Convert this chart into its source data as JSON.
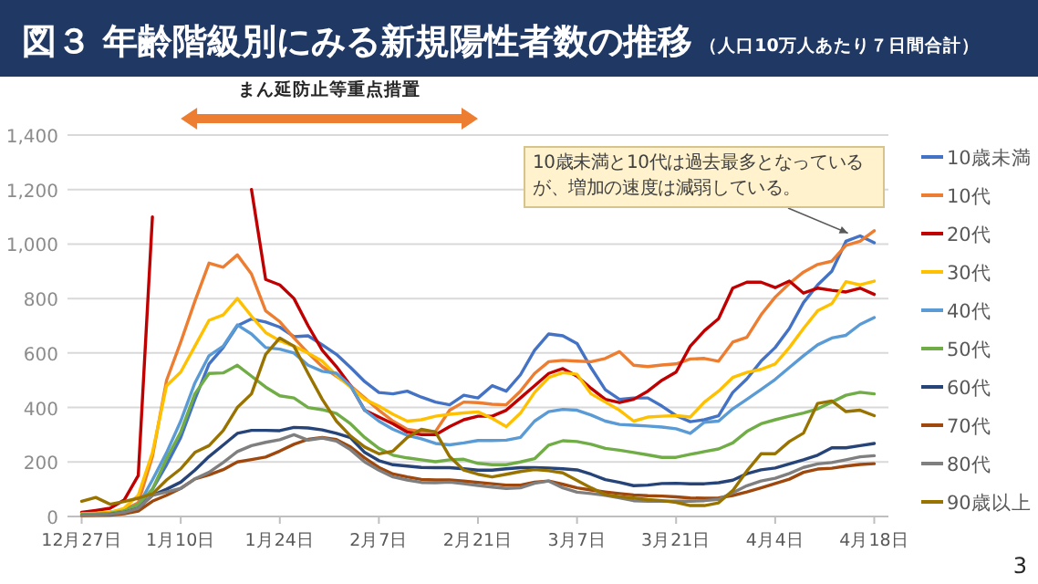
{
  "chart_data": {
    "type": "line",
    "title": "図３ 年齢階級別にみる新規陽性者数の推移",
    "subtitle": "（人口10万人あたり７日間合計）",
    "categories": [
      "12月27日",
      null,
      null,
      null,
      null,
      null,
      null,
      "1月10日",
      null,
      null,
      null,
      null,
      null,
      null,
      "1月24日",
      null,
      null,
      null,
      null,
      null,
      null,
      "2月7日",
      null,
      null,
      null,
      null,
      null,
      null,
      "2月21日",
      null,
      null,
      null,
      null,
      null,
      null,
      "3月7日",
      null,
      null,
      null,
      null,
      null,
      null,
      "3月21日",
      null,
      null,
      null,
      null,
      null,
      null,
      "4月4日",
      null,
      null,
      null,
      null,
      null,
      null,
      "4月18日"
    ],
    "series": [
      {
        "name": "10歳未満",
        "color": "#4472c4",
        "values": [
          null,
          null,
          null,
          20,
          40,
          100,
          190,
          290,
          430,
          560,
          620,
          700,
          725,
          714,
          695,
          660,
          663,
          630,
          595,
          547,
          495,
          455,
          450,
          460,
          438,
          420,
          410,
          445,
          435,
          480,
          460,
          520,
          610,
          670,
          663,
          635,
          545,
          465,
          430,
          435,
          435,
          405,
          370,
          348,
          355,
          370,
          455,
          505,
          570,
          620,
          690,
          785,
          850,
          900,
          1010,
          1030,
          1005
        ]
      },
      {
        "name": "10代",
        "color": "#ed7d31",
        "values": [
          10,
          12,
          15,
          25,
          50,
          220,
          500,
          640,
          790,
          930,
          915,
          960,
          890,
          755,
          715,
          655,
          600,
          550,
          515,
          480,
          435,
          390,
          350,
          320,
          312,
          312,
          390,
          420,
          418,
          412,
          410,
          460,
          525,
          568,
          573,
          570,
          568,
          580,
          605,
          555,
          550,
          556,
          560,
          578,
          580,
          570,
          640,
          658,
          740,
          805,
          855,
          897,
          925,
          937,
          995,
          1010,
          1049
        ]
      },
      {
        "name": "20代",
        "color": "#c00000",
        "values": [
          15,
          22,
          30,
          60,
          150,
          1100,
          null,
          null,
          null,
          null,
          null,
          null,
          1200,
          870,
          850,
          800,
          700,
          610,
          550,
          480,
          390,
          365,
          340,
          310,
          300,
          300,
          330,
          355,
          368,
          368,
          390,
          435,
          480,
          525,
          543,
          515,
          470,
          430,
          418,
          430,
          460,
          500,
          530,
          625,
          682,
          726,
          838,
          860,
          860,
          840,
          864,
          820,
          838,
          830,
          824,
          838,
          815
        ]
      },
      {
        "name": "30代",
        "color": "#ffc000",
        "values": [
          10,
          12,
          15,
          30,
          78,
          234,
          480,
          530,
          625,
          720,
          740,
          800,
          735,
          675,
          645,
          625,
          600,
          570,
          518,
          475,
          430,
          405,
          375,
          350,
          355,
          368,
          375,
          380,
          384,
          360,
          330,
          379,
          455,
          510,
          528,
          522,
          450,
          420,
          390,
          350,
          365,
          368,
          370,
          365,
          420,
          460,
          510,
          529,
          540,
          560,
          620,
          690,
          755,
          781,
          862,
          850,
          864
        ]
      },
      {
        "name": "40代",
        "color": "#5b9bd5",
        "values": [
          null,
          null,
          null,
          20,
          40,
          134,
          234,
          350,
          490,
          590,
          625,
          703,
          670,
          620,
          614,
          600,
          555,
          533,
          526,
          480,
          390,
          350,
          320,
          298,
          285,
          268,
          263,
          270,
          279,
          279,
          280,
          290,
          350,
          385,
          393,
          390,
          372,
          350,
          338,
          335,
          332,
          328,
          322,
          305,
          346,
          350,
          395,
          430,
          466,
          503,
          547,
          590,
          630,
          655,
          665,
          705,
          730
        ]
      },
      {
        "name": "50代",
        "color": "#70ad47",
        "values": [
          8,
          9,
          12,
          20,
          45,
          100,
          212,
          310,
          450,
          525,
          527,
          555,
          515,
          475,
          443,
          435,
          400,
          392,
          378,
          340,
          290,
          250,
          225,
          215,
          208,
          201,
          208,
          210,
          195,
          190,
          190,
          200,
          212,
          262,
          278,
          275,
          265,
          250,
          243,
          235,
          226,
          217,
          217,
          228,
          238,
          248,
          270,
          312,
          340,
          355,
          368,
          380,
          395,
          420,
          445,
          456,
          450
        ]
      },
      {
        "name": "60代",
        "color": "#264478",
        "values": [
          null,
          null,
          8,
          15,
          30,
          78,
          100,
          126,
          170,
          220,
          262,
          305,
          316,
          316,
          315,
          327,
          325,
          318,
          305,
          289,
          235,
          205,
          190,
          185,
          180,
          179,
          179,
          175,
          170,
          170,
          175,
          179,
          179,
          178,
          175,
          171,
          155,
          135,
          125,
          113,
          115,
          121,
          122,
          120,
          120,
          124,
          133,
          157,
          171,
          178,
          193,
          208,
          225,
          252,
          252,
          260,
          268
        ]
      },
      {
        "name": "70代",
        "color": "#9e480e",
        "values": [
          3,
          4,
          5,
          10,
          20,
          56,
          78,
          103,
          138,
          153,
          172,
          200,
          209,
          218,
          240,
          265,
          283,
          290,
          282,
          255,
          215,
          180,
          156,
          145,
          136,
          134,
          134,
          130,
          125,
          120,
          115,
          115,
          126,
          130,
          118,
          105,
          97,
          90,
          84,
          79,
          76,
          75,
          72,
          68,
          67,
          68,
          77,
          90,
          105,
          121,
          137,
          162,
          174,
          177,
          185,
          191,
          194
        ]
      },
      {
        "name": "80代",
        "color": "#7f7f7f",
        "values": [
          5,
          6,
          8,
          15,
          30,
          78,
          90,
          103,
          138,
          162,
          198,
          238,
          260,
          272,
          282,
          300,
          280,
          288,
          277,
          245,
          200,
          170,
          145,
          134,
          125,
          124,
          126,
          120,
          114,
          108,
          103,
          105,
          122,
          130,
          105,
          89,
          84,
          78,
          68,
          58,
          56,
          56,
          56,
          56,
          58,
          63,
          87,
          113,
          130,
          140,
          158,
          180,
          193,
          198,
          208,
          219,
          223
        ]
      },
      {
        "name": "90歳以上",
        "color": "#997300",
        "values": [
          56,
          70,
          45,
          55,
          67,
          83,
          134,
          175,
          235,
          260,
          315,
          400,
          450,
          595,
          655,
          625,
          525,
          430,
          350,
          295,
          255,
          230,
          240,
          290,
          320,
          310,
          220,
          170,
          155,
          145,
          155,
          165,
          172,
          168,
          160,
          132,
          105,
          80,
          73,
          68,
          62,
          58,
          52,
          40,
          40,
          50,
          95,
          167,
          230,
          230,
          275,
          306,
          415,
          424,
          385,
          390,
          370
        ]
      }
    ],
    "ylim": [
      0,
      1400
    ],
    "yticks": [
      {
        "value": 0,
        "label": "0"
      },
      {
        "value": 200,
        "label": "200"
      },
      {
        "value": 400,
        "label": "400"
      },
      {
        "value": 600,
        "label": "600"
      },
      {
        "value": 800,
        "label": "800"
      },
      {
        "value": 1000,
        "label": "1,000"
      },
      {
        "value": 1200,
        "label": "1,200"
      },
      {
        "value": 1400,
        "label": "1,400"
      }
    ],
    "grid": "y",
    "legend": "right",
    "marker": "none",
    "line_style": "solid",
    "annotations": [
      "まん延防止等重点措置",
      "10歳未満と10代は過去最多となっているが、増加の速度は減弱している。",
      "3"
    ]
  }
}
